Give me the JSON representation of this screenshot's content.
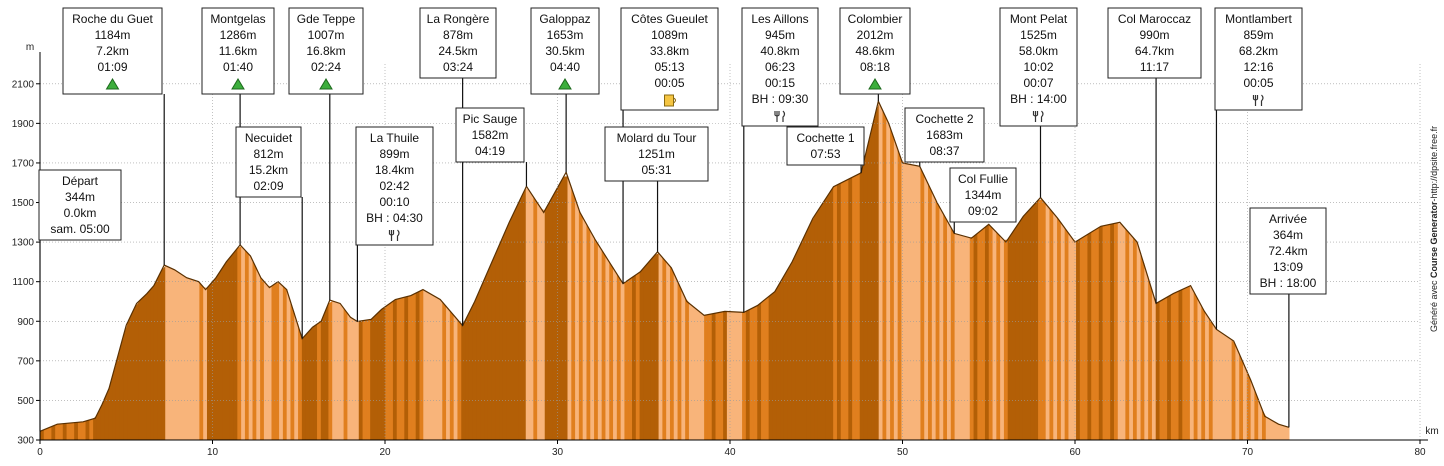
{
  "chart_data": {
    "type": "area",
    "x_unit": "km",
    "y_unit": "m",
    "xlim": [
      0,
      80
    ],
    "ylim": [
      300,
      2200
    ],
    "x_ticks": [
      0,
      10,
      20,
      30,
      40,
      50,
      60,
      70,
      80
    ],
    "y_ticks": [
      300,
      500,
      700,
      900,
      1100,
      1300,
      1500,
      1700,
      1900,
      2100
    ],
    "grid": true,
    "colors": {
      "fill_dark": "#b35f06",
      "fill_mid": "#e07f1e",
      "fill_light": "#f8b47a",
      "outline": "#5a3000",
      "grid": "#9a9a9a"
    },
    "profile": [
      [
        0,
        344
      ],
      [
        1,
        380
      ],
      [
        2.5,
        392
      ],
      [
        3.2,
        410
      ],
      [
        3.6,
        480
      ],
      [
        4,
        560
      ],
      [
        4.5,
        720
      ],
      [
        5,
        880
      ],
      [
        5.6,
        990
      ],
      [
        6.2,
        1040
      ],
      [
        6.6,
        1080
      ],
      [
        7.2,
        1184
      ],
      [
        7.8,
        1160
      ],
      [
        8.5,
        1120
      ],
      [
        9.2,
        1100
      ],
      [
        9.6,
        1060
      ],
      [
        10.2,
        1120
      ],
      [
        10.8,
        1200
      ],
      [
        11.6,
        1286
      ],
      [
        12.2,
        1230
      ],
      [
        12.8,
        1120
      ],
      [
        13.3,
        1070
      ],
      [
        13.8,
        1100
      ],
      [
        14.3,
        1060
      ],
      [
        15.2,
        812
      ],
      [
        15.8,
        870
      ],
      [
        16.3,
        900
      ],
      [
        16.8,
        1007
      ],
      [
        17.4,
        990
      ],
      [
        18,
        920
      ],
      [
        18.4,
        899
      ],
      [
        19.2,
        910
      ],
      [
        19.8,
        960
      ],
      [
        20.6,
        1010
      ],
      [
        21.5,
        1030
      ],
      [
        22.2,
        1060
      ],
      [
        23.2,
        1010
      ],
      [
        24.5,
        878
      ],
      [
        25.2,
        1000
      ],
      [
        26.2,
        1200
      ],
      [
        27.2,
        1400
      ],
      [
        28.2,
        1582
      ],
      [
        29.2,
        1450
      ],
      [
        30.5,
        1653
      ],
      [
        31.3,
        1450
      ],
      [
        32.2,
        1310
      ],
      [
        33,
        1200
      ],
      [
        33.8,
        1090
      ],
      [
        34.8,
        1150
      ],
      [
        35.8,
        1251
      ],
      [
        36.6,
        1170
      ],
      [
        37.5,
        1000
      ],
      [
        38.5,
        930
      ],
      [
        39.7,
        950
      ],
      [
        40.8,
        945
      ],
      [
        41.6,
        980
      ],
      [
        42.6,
        1050
      ],
      [
        43.6,
        1200
      ],
      [
        44.8,
        1420
      ],
      [
        46,
        1580
      ],
      [
        47.6,
        1650
      ],
      [
        48.6,
        2012
      ],
      [
        49.2,
        1900
      ],
      [
        50,
        1700
      ],
      [
        51,
        1683
      ],
      [
        52,
        1500
      ],
      [
        53,
        1344
      ],
      [
        54,
        1320
      ],
      [
        55,
        1390
      ],
      [
        56,
        1300
      ],
      [
        57,
        1430
      ],
      [
        58,
        1525
      ],
      [
        59,
        1420
      ],
      [
        60,
        1300
      ],
      [
        61.5,
        1380
      ],
      [
        62.6,
        1400
      ],
      [
        63.6,
        1300
      ],
      [
        64.7,
        990
      ],
      [
        65.7,
        1040
      ],
      [
        66.7,
        1080
      ],
      [
        67.5,
        950
      ],
      [
        68.2,
        859
      ],
      [
        69.2,
        800
      ],
      [
        70.2,
        600
      ],
      [
        71,
        420
      ],
      [
        71.8,
        380
      ],
      [
        72.4,
        364
      ]
    ],
    "waypoints": [
      {
        "km": 0,
        "lines": [
          "Départ",
          "344m",
          "0.0km",
          "sam. 05:00"
        ],
        "icon": ""
      },
      {
        "km": 7.2,
        "lines": [
          "Roche du Guet",
          "1184m",
          "7.2km",
          "01:09"
        ],
        "icon": "summit-icon"
      },
      {
        "km": 11.6,
        "lines": [
          "Montgelas",
          "1286m",
          "11.6km",
          "01:40"
        ],
        "icon": "summit-icon"
      },
      {
        "km": 15.2,
        "lines": [
          "Necuidet",
          "812m",
          "15.2km",
          "02:09"
        ],
        "icon": ""
      },
      {
        "km": 16.8,
        "lines": [
          "Gde Teppe",
          "1007m",
          "16.8km",
          "02:24"
        ],
        "icon": "summit-icon"
      },
      {
        "km": 18.4,
        "lines": [
          "La Thuile",
          "899m",
          "18.4km",
          "02:42",
          "00:10",
          "BH : 04:30"
        ],
        "icon": "restaurant-icon"
      },
      {
        "km": 24.5,
        "lines": [
          "La Rongère",
          "878m",
          "24.5km",
          "03:24"
        ],
        "icon": ""
      },
      {
        "km": 28.2,
        "lines": [
          "Pic Sauge",
          "1582m",
          "04:19"
        ],
        "icon": ""
      },
      {
        "km": 30.5,
        "lines": [
          "Galoppaz",
          "1653m",
          "30.5km",
          "04:40"
        ],
        "icon": "summit-icon"
      },
      {
        "km": 33.8,
        "lines": [
          "Côtes Gueulet",
          "1089m",
          "33.8km",
          "05:13",
          "00:05"
        ],
        "icon": "drink-icon"
      },
      {
        "km": 35.8,
        "lines": [
          "Molard du Tour",
          "1251m",
          "05:31"
        ],
        "icon": ""
      },
      {
        "km": 40.8,
        "lines": [
          "Les Aillons",
          "945m",
          "40.8km",
          "06:23",
          "00:15",
          "BH : 09:30"
        ],
        "icon": "restaurant-icon"
      },
      {
        "km": 47.6,
        "lines": [
          "Cochette 1",
          "07:53"
        ],
        "icon": ""
      },
      {
        "km": 48.6,
        "lines": [
          "Colombier",
          "2012m",
          "48.6km",
          "08:18"
        ],
        "icon": "summit-icon"
      },
      {
        "km": 51,
        "lines": [
          "Cochette 2",
          "1683m",
          "08:37"
        ],
        "icon": ""
      },
      {
        "km": 53,
        "lines": [
          "Col Fullie",
          "1344m",
          "09:02"
        ],
        "icon": ""
      },
      {
        "km": 58,
        "lines": [
          "Mont Pelat",
          "1525m",
          "58.0km",
          "10:02",
          "00:07",
          "BH : 14:00"
        ],
        "icon": "restaurant-icon"
      },
      {
        "km": 64.7,
        "lines": [
          "Col Maroccaz",
          "990m",
          "64.7km",
          "11:17"
        ],
        "icon": ""
      },
      {
        "km": 68.2,
        "lines": [
          "Montlambert",
          "859m",
          "68.2km",
          "12:16",
          "00:05"
        ],
        "icon": "restaurant-icon"
      },
      {
        "km": 72.4,
        "lines": [
          "Arrivée",
          "364m",
          "72.4km",
          "13:09",
          "BH : 18:00"
        ],
        "icon": ""
      }
    ],
    "credit": {
      "prefix": "Généré avec",
      "name": "Course Generator",
      "url": "-http://dpsite.free.fr"
    }
  }
}
